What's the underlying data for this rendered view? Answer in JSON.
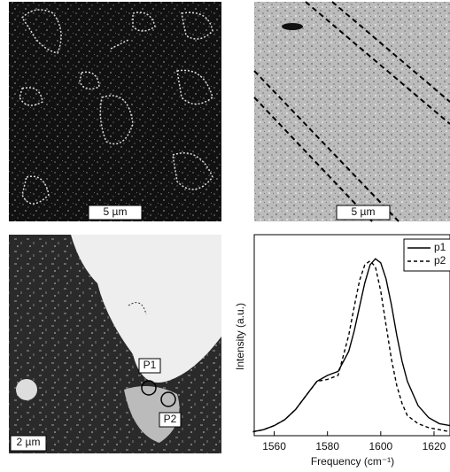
{
  "panels": [
    {
      "scale_bar": "5 µm"
    },
    {
      "scale_bar": "5 µm"
    },
    {
      "scale_bar": "2 µm",
      "points": [
        "P1",
        "P2"
      ]
    }
  ],
  "chart_data": {
    "type": "line",
    "xlabel": "Frequency (cm⁻¹)",
    "ylabel": "Intensity (a.u.)",
    "x": [
      1552,
      1556,
      1560,
      1564,
      1568,
      1572,
      1576,
      1580,
      1584,
      1588,
      1590,
      1592,
      1594,
      1596,
      1598,
      1600,
      1602,
      1604,
      1606,
      1608,
      1610,
      1614,
      1618,
      1622,
      1626
    ],
    "series": [
      {
        "name": "p1",
        "color": "#000000",
        "dash": "solid",
        "values": [
          0.02,
          0.03,
          0.05,
          0.08,
          0.13,
          0.2,
          0.27,
          0.3,
          0.32,
          0.42,
          0.52,
          0.64,
          0.76,
          0.85,
          0.88,
          0.86,
          0.78,
          0.65,
          0.5,
          0.37,
          0.27,
          0.15,
          0.09,
          0.06,
          0.05
        ]
      },
      {
        "name": "p2",
        "color": "#000000",
        "dash": "dashed",
        "values": [
          0.02,
          0.03,
          0.05,
          0.08,
          0.13,
          0.2,
          0.27,
          0.28,
          0.3,
          0.5,
          0.64,
          0.77,
          0.85,
          0.87,
          0.84,
          0.72,
          0.55,
          0.38,
          0.25,
          0.16,
          0.1,
          0.06,
          0.04,
          0.03,
          0.02
        ]
      }
    ],
    "xlim": [
      1552.5,
      1626
    ],
    "ylim": [
      0,
      1
    ],
    "xticks": [
      1560,
      1580,
      1600,
      1620
    ],
    "legend": "top-right"
  }
}
